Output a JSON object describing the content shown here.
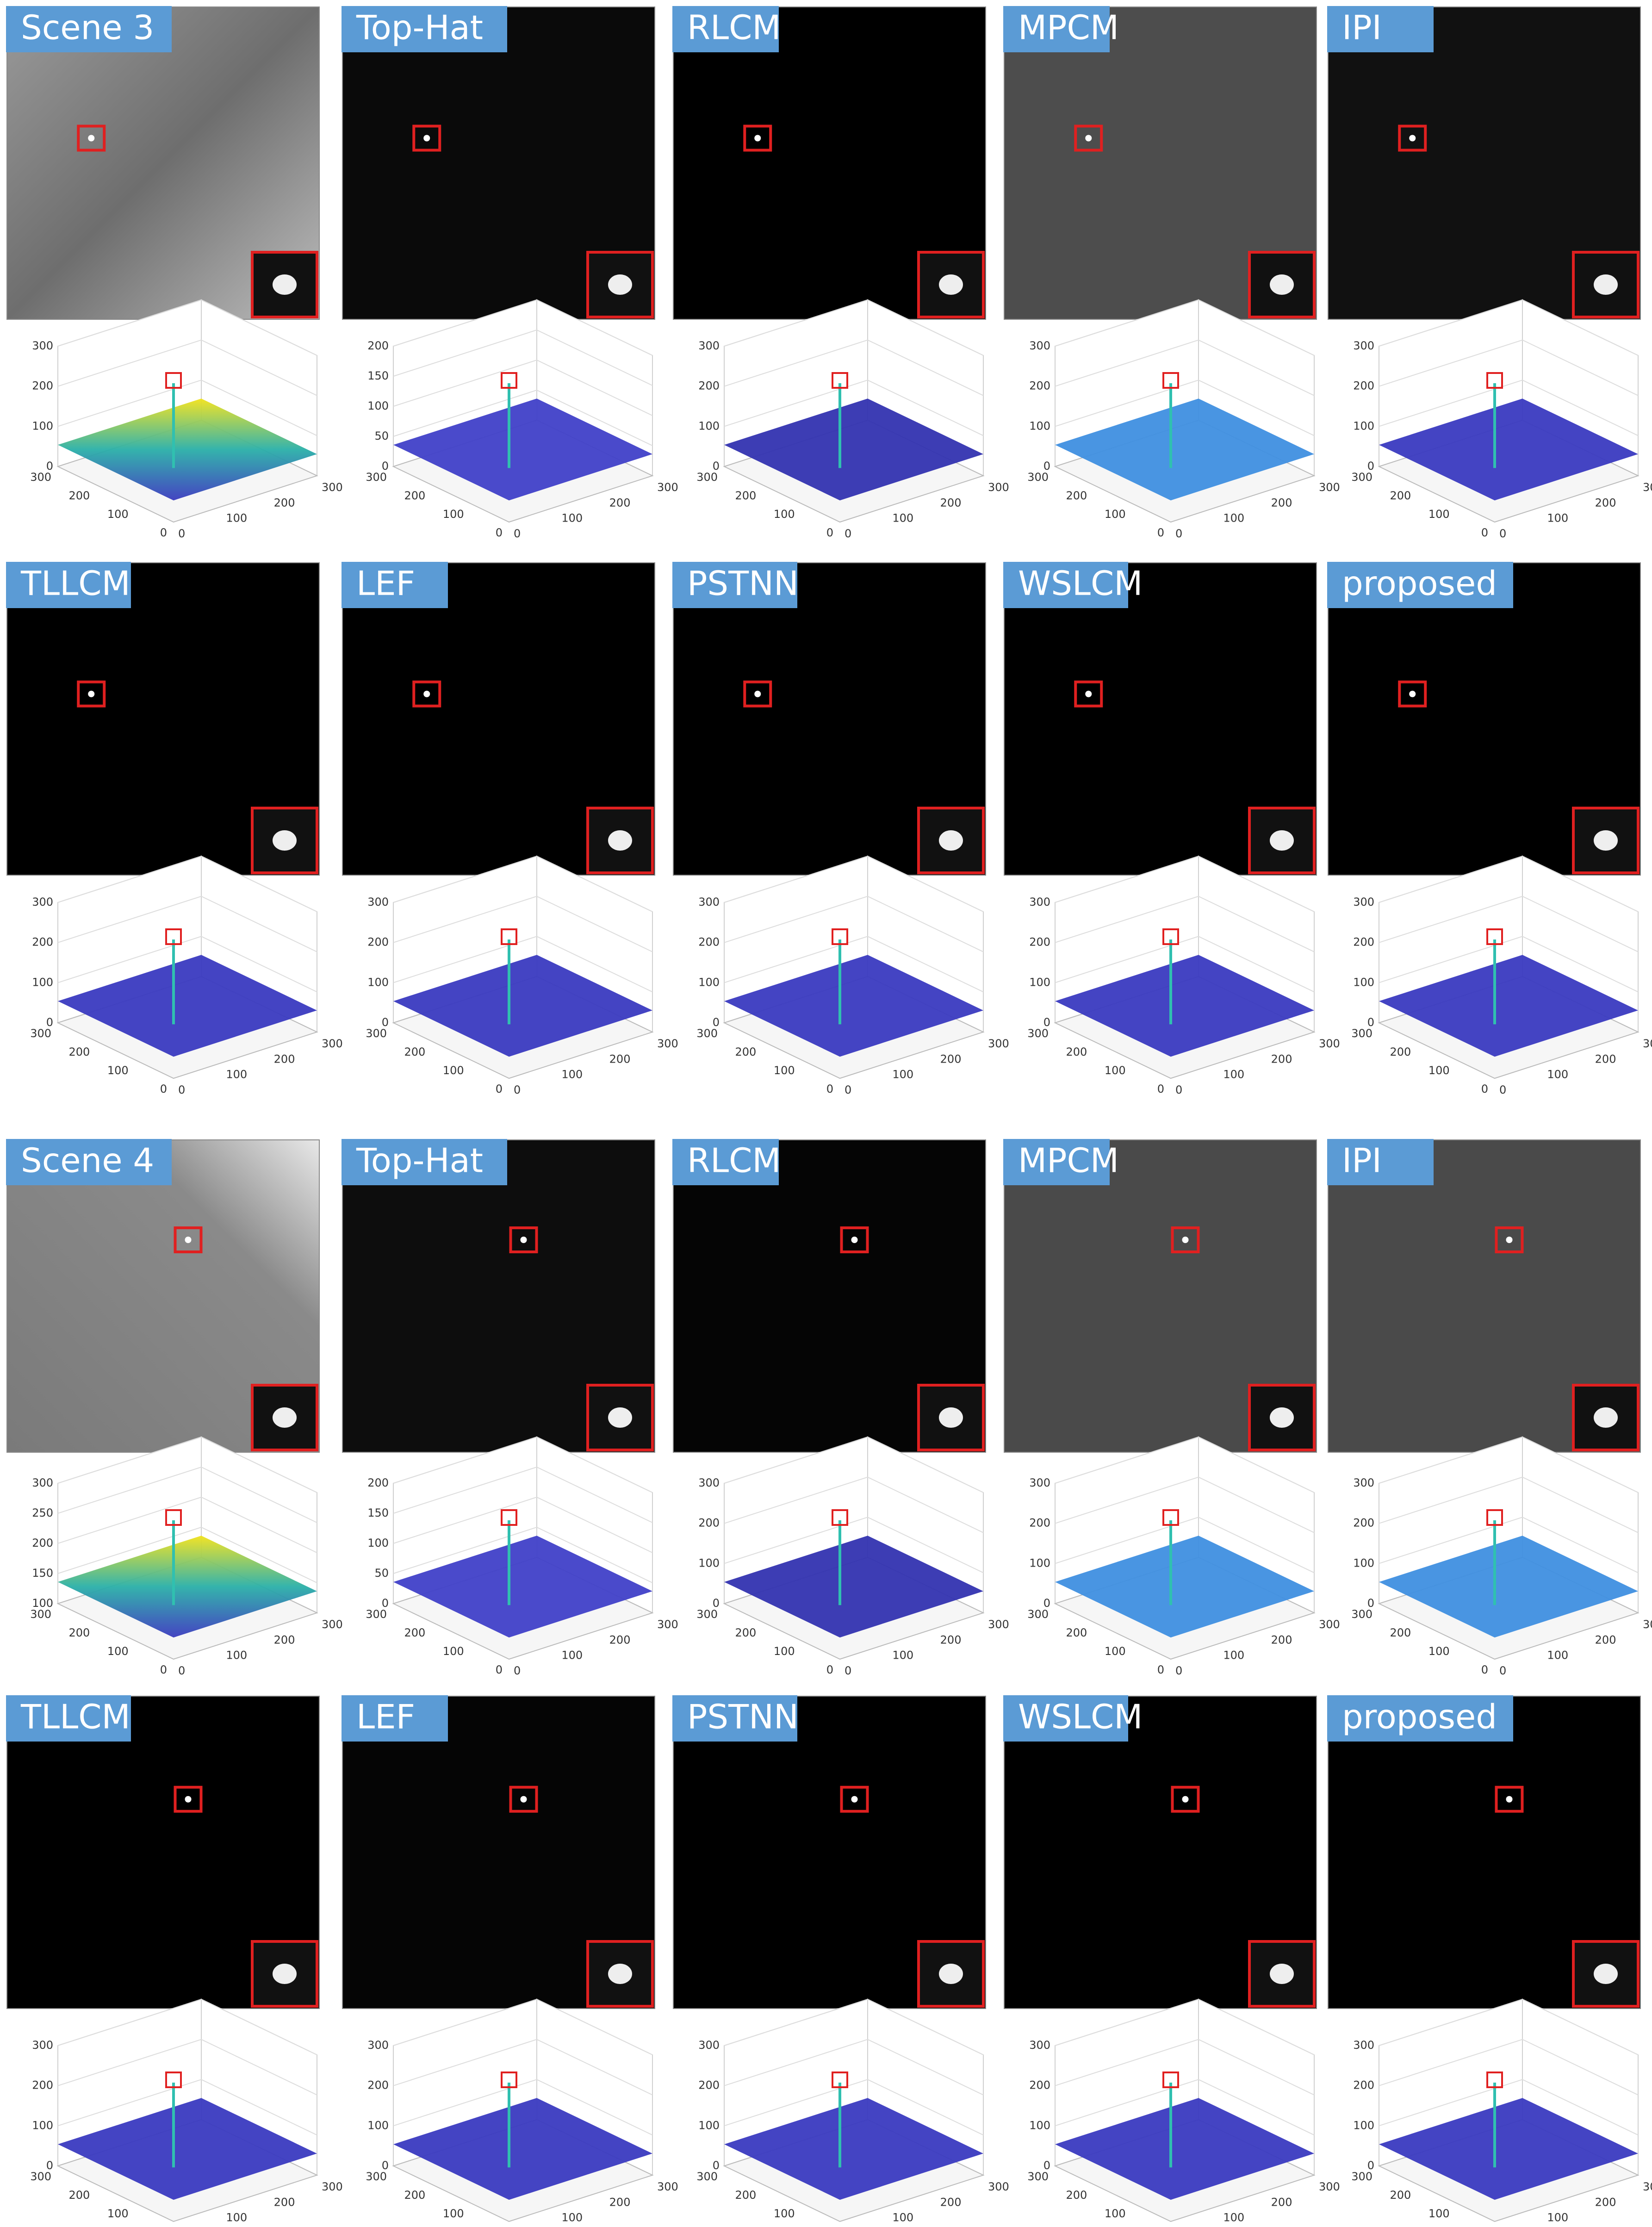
{
  "blocks": [
    {
      "panels": [
        {
          "label": "Scene 3",
          "z_ticks": [
            0,
            100,
            200,
            300
          ]
        },
        {
          "label": "Top-Hat",
          "z_ticks": [
            0,
            50,
            100,
            150,
            200
          ]
        },
        {
          "label": "RLCM",
          "z_ticks": [
            0,
            100,
            200,
            300
          ]
        },
        {
          "label": "MPCM",
          "z_ticks": [
            0,
            100,
            200,
            300
          ]
        },
        {
          "label": "IPI",
          "z_ticks": [
            0,
            100,
            200,
            300
          ]
        }
      ]
    },
    {
      "panels": [
        {
          "label": "TLLCM",
          "z_ticks": [
            0,
            100,
            200,
            300
          ]
        },
        {
          "label": "LEF",
          "z_ticks": [
            0,
            100,
            200,
            300
          ]
        },
        {
          "label": "PSTNN",
          "z_ticks": [
            0,
            100,
            200,
            300
          ]
        },
        {
          "label": "WSLCM",
          "z_ticks": [
            0,
            100,
            200,
            300
          ]
        },
        {
          "label": "proposed",
          "z_ticks": [
            0,
            100,
            200,
            300
          ]
        }
      ]
    },
    {
      "panels": [
        {
          "label": "Scene 4",
          "z_ticks": [
            100,
            150,
            200,
            250,
            300
          ]
        },
        {
          "label": "Top-Hat",
          "z_ticks": [
            0,
            50,
            100,
            150,
            200
          ]
        },
        {
          "label": "RLCM",
          "z_ticks": [
            0,
            100,
            200,
            300
          ]
        },
        {
          "label": "MPCM",
          "z_ticks": [
            0,
            100,
            200,
            300
          ]
        },
        {
          "label": "IPI",
          "z_ticks": [
            0,
            100,
            200,
            300
          ]
        }
      ]
    },
    {
      "panels": [
        {
          "label": "TLLCM",
          "z_ticks": [
            0,
            100,
            200,
            300
          ]
        },
        {
          "label": "LEF",
          "z_ticks": [
            0,
            100,
            200,
            300
          ]
        },
        {
          "label": "PSTNN",
          "z_ticks": [
            0,
            100,
            200,
            300
          ]
        },
        {
          "label": "WSLCM",
          "z_ticks": [
            0,
            100,
            200,
            300
          ]
        },
        {
          "label": "proposed",
          "z_ticks": [
            0,
            100,
            200,
            300
          ]
        }
      ]
    }
  ],
  "floor_ticks": [
    0,
    100,
    200,
    300
  ]
}
